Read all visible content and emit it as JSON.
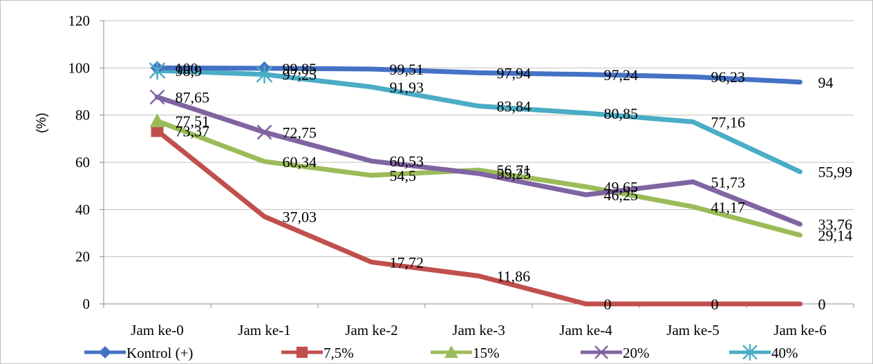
{
  "chart_data": {
    "type": "line",
    "title": "",
    "xlabel": "",
    "ylabel": "(%)",
    "ylim": [
      0,
      120
    ],
    "yticks": [
      0,
      20,
      40,
      60,
      80,
      100,
      120
    ],
    "categories": [
      "Jam ke-0",
      "Jam ke-1",
      "Jam ke-2",
      "Jam ke-3",
      "Jam ke-4",
      "Jam ke-5",
      "Jam ke-6"
    ],
    "grid": true,
    "legend_position": "bottom",
    "series": [
      {
        "name": "Kontrol (+)",
        "color": "#4472c4",
        "marker": "diamond",
        "values": [
          100,
          99.85,
          99.51,
          97.94,
          97.24,
          96.23,
          94
        ],
        "labels": [
          "100",
          "99,85",
          "99,51",
          "97,94",
          "97,24",
          "96,23",
          "94"
        ]
      },
      {
        "name": "7,5%",
        "color": "#c0504d",
        "marker": "square",
        "values": [
          73.37,
          37.03,
          17.72,
          11.86,
          0,
          0,
          0
        ],
        "labels": [
          "73,37",
          "37,03",
          "17,72",
          "11,86",
          "0",
          "0",
          "0"
        ]
      },
      {
        "name": "15%",
        "color": "#9bbb59",
        "marker": "triangle",
        "values": [
          77.51,
          60.34,
          54.5,
          56.71,
          49.65,
          41.17,
          29.14
        ],
        "labels": [
          "77,51",
          "60,34",
          "54,5",
          "56,71",
          "49,65",
          "41,17",
          "29,14"
        ]
      },
      {
        "name": "20%",
        "color": "#8064a2",
        "marker": "x",
        "values": [
          87.65,
          72.75,
          60.53,
          55.25,
          46.25,
          51.73,
          33.76
        ],
        "labels": [
          "87,65",
          "72,75",
          "60,53",
          "55,25",
          "46,25",
          "51,73",
          "33,76"
        ]
      },
      {
        "name": "40%",
        "color": "#4bacc6",
        "marker": "star",
        "values": [
          98.9,
          97.25,
          91.93,
          83.84,
          80.85,
          77.16,
          55.99
        ],
        "labels": [
          "98,9",
          "97,25",
          "91,93",
          "83,84",
          "80,85",
          "77,16",
          "55,99"
        ]
      }
    ]
  }
}
